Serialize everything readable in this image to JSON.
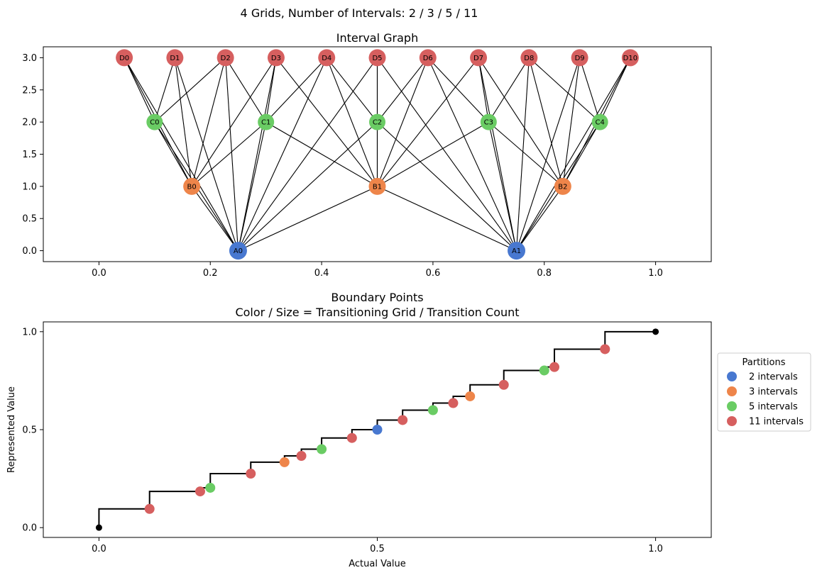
{
  "suptitle": "4 Grids, Number of Intervals: 2 / 3 / 5 / 11",
  "colors": {
    "A": "#4878d0",
    "B": "#ee854a",
    "C": "#6acc64",
    "D": "#d65f5f",
    "edge": "#000000",
    "endpoint": "#000000"
  },
  "chart_data": [
    {
      "type": "scatter",
      "title": "Interval Graph",
      "xlim": [
        -0.1,
        1.1
      ],
      "ylim": [
        -0.17,
        3.17
      ],
      "xticks": [
        0.0,
        0.2,
        0.4,
        0.6,
        0.8,
        1.0
      ],
      "xtick_labels": [
        "0.0",
        "0.2",
        "0.4",
        "0.6",
        "0.8",
        "1.0"
      ],
      "yticks": [
        0.0,
        0.5,
        1.0,
        1.5,
        2.0,
        2.5,
        3.0
      ],
      "ytick_labels": [
        "0.0",
        "0.5",
        "1.0",
        "1.5",
        "2.0",
        "2.5",
        "3.0"
      ],
      "grid": false,
      "levels": [
        {
          "group": "A",
          "y": 0,
          "nodes": [
            {
              "label": "A0",
              "x": 0.25
            },
            {
              "label": "A1",
              "x": 0.75
            }
          ]
        },
        {
          "group": "B",
          "y": 1,
          "nodes": [
            {
              "label": "B0",
              "x": 0.1667
            },
            {
              "label": "B1",
              "x": 0.5
            },
            {
              "label": "B2",
              "x": 0.8333
            }
          ]
        },
        {
          "group": "C",
          "y": 2,
          "nodes": [
            {
              "label": "C0",
              "x": 0.1
            },
            {
              "label": "C1",
              "x": 0.3
            },
            {
              "label": "C2",
              "x": 0.5
            },
            {
              "label": "C3",
              "x": 0.7
            },
            {
              "label": "C4",
              "x": 0.9
            }
          ]
        },
        {
          "group": "D",
          "y": 3,
          "nodes": [
            {
              "label": "D0",
              "x": 0.0455
            },
            {
              "label": "D1",
              "x": 0.1364
            },
            {
              "label": "D2",
              "x": 0.2273
            },
            {
              "label": "D3",
              "x": 0.3182
            },
            {
              "label": "D4",
              "x": 0.4091
            },
            {
              "label": "D5",
              "x": 0.5
            },
            {
              "label": "D6",
              "x": 0.5909
            },
            {
              "label": "D7",
              "x": 0.6818
            },
            {
              "label": "D8",
              "x": 0.7727
            },
            {
              "label": "D9",
              "x": 0.8636
            },
            {
              "label": "D10",
              "x": 0.9545
            }
          ]
        }
      ]
    },
    {
      "type": "scatter",
      "title": "Boundary Points",
      "subtitle": "Color / Size = Transitioning Grid / Transition Count",
      "xlabel": "Actual Value",
      "ylabel": "Represented Value",
      "xlim": [
        -0.1,
        1.1
      ],
      "ylim": [
        -0.05,
        1.05
      ],
      "xticks": [
        0.0,
        0.5,
        1.0
      ],
      "xtick_labels": [
        "0.0",
        "0.5",
        "1.0"
      ],
      "yticks": [
        0.0,
        0.5,
        1.0
      ],
      "ytick_labels": [
        "0.0",
        "0.5",
        "1.0"
      ],
      "grid": false,
      "legend": {
        "title": "Partitions",
        "placement": "right, outside",
        "entries": [
          {
            "label": "2 intervals",
            "group": "A"
          },
          {
            "label": "3 intervals",
            "group": "B"
          },
          {
            "label": "5 intervals",
            "group": "C"
          },
          {
            "label": "11 intervals",
            "group": "D"
          }
        ]
      },
      "step_line": {
        "x": [
          0,
          0.0909,
          0.1818,
          0.2,
          0.2727,
          0.3333,
          0.3636,
          0.4,
          0.4545,
          0.5,
          0.5455,
          0.6,
          0.6364,
          0.6667,
          0.7273,
          0.8,
          0.8182,
          0.9091,
          1.0
        ],
        "y": [
          0,
          0.0955,
          0.1848,
          0.2035,
          0.2755,
          0.3339,
          0.3661,
          0.4005,
          0.4577,
          0.5,
          0.5489,
          0.5995,
          0.6355,
          0.6702,
          0.7287,
          0.8022,
          0.8197,
          0.9109,
          1.0
        ]
      },
      "series": [
        {
          "name": "2 intervals",
          "group": "A",
          "x": [
            0.5
          ],
          "y": [
            0.5
          ]
        },
        {
          "name": "3 intervals",
          "group": "B",
          "x": [
            0.3333,
            0.6667
          ],
          "y": [
            0.3339,
            0.6702
          ]
        },
        {
          "name": "5 intervals",
          "group": "C",
          "x": [
            0.2,
            0.4,
            0.6,
            0.8
          ],
          "y": [
            0.2035,
            0.4005,
            0.5995,
            0.8022
          ]
        },
        {
          "name": "11 intervals",
          "group": "D",
          "x": [
            0.0909,
            0.1818,
            0.2727,
            0.3636,
            0.4545,
            0.5455,
            0.6364,
            0.7273,
            0.8182,
            0.9091
          ],
          "y": [
            0.0955,
            0.1848,
            0.2755,
            0.3661,
            0.4577,
            0.5489,
            0.6355,
            0.7287,
            0.8197,
            0.9109
          ]
        }
      ],
      "endpoints": [
        {
          "x": 0,
          "y": 0
        },
        {
          "x": 1.0,
          "y": 1.0
        }
      ]
    }
  ]
}
